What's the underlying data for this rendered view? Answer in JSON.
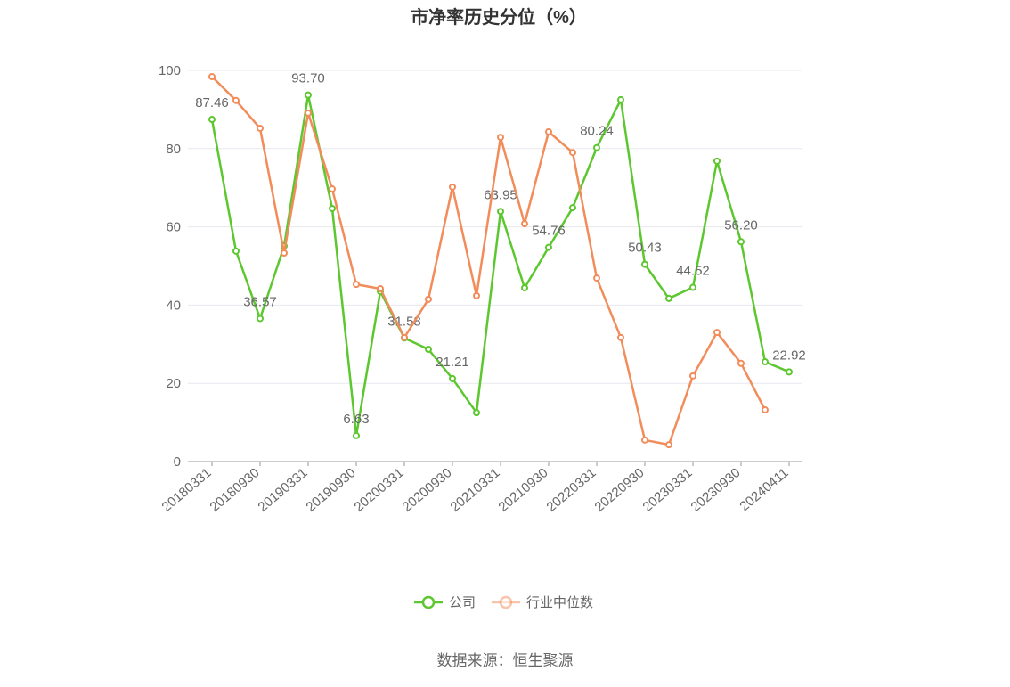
{
  "chart_data": {
    "type": "line",
    "title": "市净率历史分位（%）",
    "categories": [
      "20180331",
      null,
      "20180930",
      null,
      "20190331",
      null,
      "20190930",
      null,
      "20200331",
      null,
      "20200930",
      null,
      "20210331",
      null,
      "20210930",
      null,
      "20220331",
      null,
      "20220930",
      null,
      "20230331",
      null,
      "20230930",
      null,
      "20240411"
    ],
    "series": [
      {
        "name": "公司",
        "color": "#5cc72e",
        "values": [
          87.46,
          53.8,
          36.57,
          55.1,
          93.7,
          64.7,
          6.63,
          43.5,
          31.58,
          28.7,
          21.21,
          12.5,
          63.95,
          44.4,
          54.76,
          64.9,
          80.24,
          92.5,
          50.43,
          41.7,
          44.52,
          76.8,
          56.2,
          25.5,
          22.92
        ],
        "value_labels": [
          "87.46",
          null,
          "36.57",
          null,
          "93.70",
          null,
          "6.63",
          null,
          "31.58",
          null,
          "21.21",
          null,
          "63.95",
          null,
          "54.76",
          null,
          "80.24",
          null,
          "50.43",
          null,
          "44.52",
          null,
          "56.20",
          null,
          "22.92"
        ]
      },
      {
        "name": "行业中位数",
        "color": "#f28c5a",
        "values": [
          98.4,
          92.3,
          85.2,
          53.3,
          89.1,
          69.7,
          45.3,
          44.2,
          31.7,
          41.5,
          70.2,
          42.4,
          82.9,
          60.8,
          84.3,
          79.0,
          46.9,
          31.7,
          5.5,
          4.3,
          21.9,
          33.0,
          25.1,
          13.2,
          null
        ]
      }
    ],
    "ylim": [
      0,
      100
    ],
    "yticks": [
      0,
      20,
      40,
      60,
      80,
      100
    ],
    "grid": true,
    "source": "数据来源：恒生聚源"
  }
}
